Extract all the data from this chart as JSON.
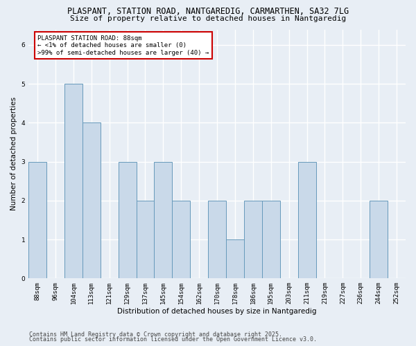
{
  "title1": "PLASPANT, STATION ROAD, NANTGAREDIG, CARMARTHEN, SA32 7LG",
  "title2": "Size of property relative to detached houses in Nantgaredig",
  "xlabel": "Distribution of detached houses by size in Nantgaredig",
  "ylabel": "Number of detached properties",
  "categories": [
    "88sqm",
    "96sqm",
    "104sqm",
    "113sqm",
    "121sqm",
    "129sqm",
    "137sqm",
    "145sqm",
    "154sqm",
    "162sqm",
    "170sqm",
    "178sqm",
    "186sqm",
    "195sqm",
    "203sqm",
    "211sqm",
    "219sqm",
    "227sqm",
    "236sqm",
    "244sqm",
    "252sqm"
  ],
  "values": [
    3,
    0,
    5,
    4,
    0,
    3,
    2,
    3,
    2,
    0,
    2,
    1,
    2,
    2,
    0,
    3,
    0,
    0,
    0,
    2,
    0
  ],
  "bar_color": "#c9d9e9",
  "bar_edge_color": "#6699bb",
  "annotation_title": "PLASPANT STATION ROAD: 88sqm",
  "annotation_line2": "← <1% of detached houses are smaller (0)",
  "annotation_line3": ">99% of semi-detached houses are larger (40) →",
  "annotation_box_color": "#ffffff",
  "annotation_border_color": "#cc0000",
  "ylim": [
    0,
    6.4
  ],
  "yticks": [
    0,
    1,
    2,
    3,
    4,
    5,
    6
  ],
  "footer1": "Contains HM Land Registry data © Crown copyright and database right 2025.",
  "footer2": "Contains public sector information licensed under the Open Government Licence v3.0.",
  "bg_color": "#e8eef5",
  "grid_color": "#ffffff",
  "title1_fontsize": 8.5,
  "title2_fontsize": 8,
  "tick_fontsize": 6.5,
  "axis_label_fontsize": 7.5,
  "footer_fontsize": 6
}
